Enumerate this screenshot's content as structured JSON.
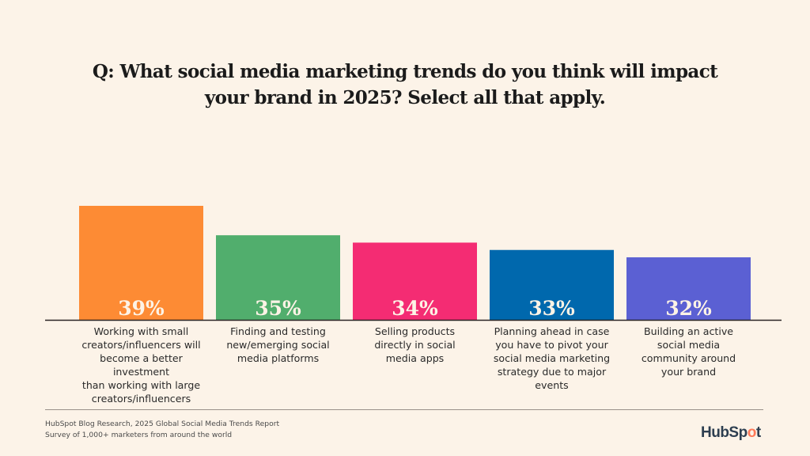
{
  "chart_data": {
    "type": "bar",
    "title": "Q: What social media marketing trends do you think will impact your brand in 2025? Select all that apply.",
    "title_lines": [
      "Q: What social media marketing trends do you think will impact",
      "your brand in 2025? Select all that apply."
    ],
    "categories": [
      [
        "Working with small",
        "creators/influencers will",
        "become a better investment",
        "than working with large",
        "creators/influencers"
      ],
      [
        "Finding and testing",
        "new/emerging social",
        "media platforms"
      ],
      [
        "Selling products",
        "directly in social",
        "media apps"
      ],
      [
        "Planning ahead in case",
        "you have to pivot your",
        "social media marketing",
        "strategy due to major",
        "events"
      ],
      [
        "Building an active",
        "social media",
        "community around",
        "your brand"
      ]
    ],
    "values": [
      39,
      35,
      34,
      33,
      32
    ],
    "value_labels": [
      "39%",
      "35%",
      "34%",
      "33%",
      "32%"
    ],
    "colors": [
      "#fd8b34",
      "#51ae6d",
      "#f42c73",
      "#0068ad",
      "#5b60d3"
    ],
    "xlabel": "",
    "ylabel": "",
    "ylim": [
      23.5,
      39
    ],
    "grid": false,
    "legend": "none"
  },
  "footer": {
    "source_line1": "HubSpot Blog Research, 2025 Global Social Media Trends Report",
    "source_line2": "Survey of 1,000+ marketers from around the world",
    "logo_text_a": "HubSp",
    "logo_text_o": "o",
    "logo_text_b": "t"
  },
  "theme": {
    "background": "#fcf3e8",
    "axis_color": "#2a2424",
    "value_label_color": "#fdf3e6"
  }
}
